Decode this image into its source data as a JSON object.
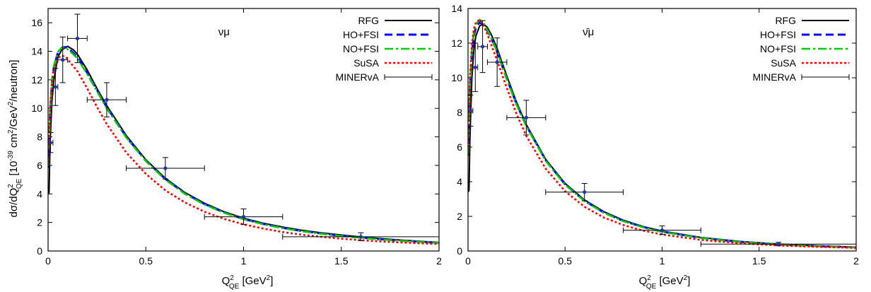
{
  "ylabel": {
    "main": "dσ/dQ",
    "sup1": "2",
    "sub1": "QE",
    "rest1": " [10",
    "sup2": "-39",
    "rest2": " cm",
    "sup3": "2",
    "rest3": "/GeV",
    "sup4": "2",
    "rest4": "/neutron]"
  },
  "xlabel": {
    "main": "Q",
    "sup1": "2",
    "sub1": "QE",
    "rest1": " [GeV",
    "sup2": "2",
    "rest2": "]"
  },
  "colors": {
    "RFG": "#000000",
    "HO+FSI": "#0000ff",
    "NO+FSI": "#00cc00",
    "SuSA": "#ff0000",
    "MINERvA": "#000000",
    "points": "#2233aa"
  },
  "chart_data": [
    {
      "type": "line",
      "annotation": "νμ",
      "xlim": [
        0,
        2
      ],
      "ylim": [
        0,
        17
      ],
      "x_ticks": [
        0,
        0.5,
        1,
        1.5,
        2
      ],
      "x_tick_labels": [
        "0",
        "0.5",
        "1",
        "1.5",
        "2"
      ],
      "y_ticks": [
        0,
        2,
        4,
        6,
        8,
        10,
        12,
        14,
        16
      ],
      "y_tick_labels": [
        "0",
        "2",
        "4",
        "6",
        "8",
        "10",
        "12",
        "14",
        "16"
      ],
      "legend_position": "top-right",
      "legend": [
        "RFG",
        "HO+FSI",
        "NO+FSI",
        "SuSA",
        "MINERvA"
      ],
      "series": [
        {
          "name": "RFG",
          "style": "solid",
          "x": [
            0,
            0.005,
            0.01,
            0.02,
            0.03,
            0.05,
            0.07,
            0.1,
            0.13,
            0.15,
            0.2,
            0.25,
            0.3,
            0.4,
            0.5,
            0.6,
            0.7,
            0.8,
            0.9,
            1.0,
            1.1,
            1.2,
            1.3,
            1.4,
            1.5,
            1.6,
            1.7,
            1.8,
            1.9,
            2.0
          ],
          "y": [
            4.0,
            4.1,
            7.5,
            10.5,
            12.0,
            13.6,
            14.1,
            14.35,
            14.1,
            13.8,
            12.7,
            11.4,
            10.2,
            8.1,
            6.4,
            5.1,
            4.1,
            3.35,
            2.75,
            2.3,
            1.95,
            1.68,
            1.45,
            1.27,
            1.12,
            0.98,
            0.87,
            0.77,
            0.68,
            0.6
          ]
        },
        {
          "name": "HO+FSI",
          "style": "dashed",
          "x": [
            0,
            0.005,
            0.01,
            0.02,
            0.03,
            0.05,
            0.07,
            0.09,
            0.12,
            0.15,
            0.2,
            0.25,
            0.3,
            0.4,
            0.5,
            0.6,
            0.7,
            0.8,
            0.9,
            1.0,
            1.1,
            1.2,
            1.3,
            1.4,
            1.5,
            1.6,
            1.7,
            1.8,
            1.9,
            2.0
          ],
          "y": [
            5.8,
            7.5,
            9.5,
            11.8,
            12.9,
            13.9,
            14.25,
            14.3,
            14.0,
            13.6,
            12.5,
            11.3,
            10.1,
            8.0,
            6.35,
            5.05,
            4.05,
            3.3,
            2.7,
            2.25,
            1.9,
            1.62,
            1.4,
            1.22,
            1.07,
            0.94,
            0.83,
            0.73,
            0.65,
            0.57
          ]
        },
        {
          "name": "NO+FSI",
          "style": "dashdot",
          "x": [
            0,
            0.005,
            0.01,
            0.02,
            0.03,
            0.05,
            0.07,
            0.09,
            0.12,
            0.15,
            0.2,
            0.25,
            0.3,
            0.4,
            0.5,
            0.6,
            0.7,
            0.8,
            0.9,
            1.0,
            1.1,
            1.2,
            1.3,
            1.4,
            1.5,
            1.6,
            1.7,
            1.8,
            1.9,
            2.0
          ],
          "y": [
            6.0,
            7.8,
            9.8,
            12.0,
            13.0,
            13.95,
            14.25,
            14.25,
            13.9,
            13.5,
            12.4,
            11.2,
            10.0,
            7.95,
            6.3,
            5.0,
            4.0,
            3.25,
            2.68,
            2.22,
            1.87,
            1.6,
            1.38,
            1.2,
            1.05,
            0.92,
            0.81,
            0.72,
            0.64,
            0.56
          ]
        },
        {
          "name": "SuSA",
          "style": "dotted",
          "x": [
            0,
            0.005,
            0.01,
            0.02,
            0.03,
            0.05,
            0.07,
            0.09,
            0.12,
            0.15,
            0.2,
            0.25,
            0.3,
            0.4,
            0.5,
            0.6,
            0.7,
            0.8,
            0.9,
            1.0,
            1.1,
            1.2,
            1.3,
            1.4,
            1.5,
            1.6,
            1.7,
            1.8,
            1.9,
            2.0
          ],
          "y": [
            6.2,
            8.0,
            10.0,
            11.9,
            12.8,
            13.5,
            13.7,
            13.6,
            13.1,
            12.6,
            11.4,
            10.1,
            8.9,
            6.9,
            5.4,
            4.25,
            3.4,
            2.75,
            2.25,
            1.87,
            1.57,
            1.33,
            1.14,
            0.99,
            0.86,
            0.76,
            0.67,
            0.6,
            0.54,
            0.49
          ]
        }
      ],
      "data_series": {
        "name": "MINERvA",
        "points": [
          {
            "x": 0.0125,
            "y": 7.6,
            "xerr": 0.0125,
            "yerr": 0.7
          },
          {
            "x": 0.0375,
            "y": 11.5,
            "xerr": 0.0125,
            "yerr": 1.3
          },
          {
            "x": 0.075,
            "y": 13.4,
            "xerr": 0.025,
            "yerr": 1.6
          },
          {
            "x": 0.15,
            "y": 14.9,
            "xerr": 0.05,
            "yerr": 1.7
          },
          {
            "x": 0.3,
            "y": 10.6,
            "xerr": 0.1,
            "yerr": 1.2
          },
          {
            "x": 0.6,
            "y": 5.8,
            "xerr": 0.2,
            "yerr": 0.75
          },
          {
            "x": 1.0,
            "y": 2.4,
            "xerr": 0.2,
            "yerr": 0.55
          },
          {
            "x": 1.6,
            "y": 1.0,
            "xerr": 0.4,
            "yerr": 0.28
          }
        ]
      }
    },
    {
      "type": "line",
      "annotation": "ν̄μ",
      "xlim": [
        0,
        2
      ],
      "ylim": [
        0,
        14
      ],
      "x_ticks": [
        0,
        0.5,
        1,
        1.5,
        2
      ],
      "x_tick_labels": [
        "0",
        "0.5",
        "1",
        "1.5",
        "2"
      ],
      "y_ticks": [
        0,
        2,
        4,
        6,
        8,
        10,
        12,
        14
      ],
      "y_tick_labels": [
        "0",
        "2",
        "4",
        "6",
        "8",
        "10",
        "12",
        "14"
      ],
      "legend_position": "top-right",
      "legend": [
        "RFG",
        "HO+FSI",
        "NO+FSI",
        "SuSA",
        "MINERvA"
      ],
      "series": [
        {
          "name": "RFG",
          "style": "solid",
          "x": [
            0,
            0.005,
            0.01,
            0.02,
            0.03,
            0.04,
            0.06,
            0.08,
            0.1,
            0.12,
            0.15,
            0.2,
            0.25,
            0.3,
            0.4,
            0.5,
            0.6,
            0.7,
            0.8,
            0.9,
            1.0,
            1.2,
            1.4,
            1.6,
            1.8,
            2.0
          ],
          "y": [
            3.4,
            3.5,
            6.5,
            10.0,
            11.6,
            12.4,
            13.0,
            13.1,
            12.9,
            12.5,
            11.7,
            10.1,
            8.6,
            7.3,
            5.3,
            3.9,
            2.95,
            2.27,
            1.78,
            1.42,
            1.15,
            0.78,
            0.55,
            0.4,
            0.3,
            0.22
          ]
        },
        {
          "name": "HO+FSI",
          "style": "dashed",
          "x": [
            0,
            0.005,
            0.01,
            0.02,
            0.03,
            0.04,
            0.06,
            0.08,
            0.1,
            0.12,
            0.15,
            0.2,
            0.25,
            0.3,
            0.4,
            0.5,
            0.6,
            0.7,
            0.8,
            0.9,
            1.0,
            1.2,
            1.4,
            1.6,
            1.8,
            2.0
          ],
          "y": [
            5.5,
            7.5,
            9.4,
            11.4,
            12.4,
            12.9,
            13.2,
            13.05,
            12.7,
            12.3,
            11.5,
            9.95,
            8.5,
            7.25,
            5.25,
            3.85,
            2.9,
            2.22,
            1.74,
            1.39,
            1.12,
            0.76,
            0.53,
            0.38,
            0.28,
            0.21
          ]
        },
        {
          "name": "NO+FSI",
          "style": "dashdot",
          "x": [
            0,
            0.005,
            0.01,
            0.02,
            0.03,
            0.04,
            0.06,
            0.08,
            0.1,
            0.12,
            0.15,
            0.2,
            0.25,
            0.3,
            0.4,
            0.5,
            0.6,
            0.7,
            0.8,
            0.9,
            1.0,
            1.2,
            1.4,
            1.6,
            1.8,
            2.0
          ],
          "y": [
            5.6,
            7.6,
            9.6,
            11.6,
            12.6,
            13.1,
            13.35,
            13.15,
            12.75,
            12.3,
            11.5,
            9.9,
            8.45,
            7.2,
            5.2,
            3.82,
            2.88,
            2.2,
            1.72,
            1.37,
            1.1,
            0.75,
            0.52,
            0.37,
            0.27,
            0.2
          ]
        },
        {
          "name": "SuSA",
          "style": "dotted",
          "x": [
            0,
            0.005,
            0.01,
            0.02,
            0.03,
            0.04,
            0.06,
            0.08,
            0.1,
            0.12,
            0.15,
            0.2,
            0.25,
            0.3,
            0.4,
            0.5,
            0.6,
            0.7,
            0.8,
            0.9,
            1.0,
            1.2,
            1.4,
            1.6,
            1.8,
            2.0
          ],
          "y": [
            6.0,
            8.0,
            10.0,
            11.9,
            12.8,
            13.2,
            13.35,
            13.0,
            12.5,
            11.9,
            11.0,
            9.4,
            7.9,
            6.65,
            4.75,
            3.45,
            2.55,
            1.93,
            1.5,
            1.18,
            0.95,
            0.64,
            0.45,
            0.32,
            0.24,
            0.18
          ]
        }
      ],
      "data_series": {
        "name": "MINERvA",
        "points": [
          {
            "x": 0.0125,
            "y": 8.1,
            "xerr": 0.0125,
            "yerr": 0.9
          },
          {
            "x": 0.0375,
            "y": 10.6,
            "xerr": 0.0125,
            "yerr": 1.4
          },
          {
            "x": 0.075,
            "y": 11.8,
            "xerr": 0.025,
            "yerr": 1.5
          },
          {
            "x": 0.15,
            "y": 10.9,
            "xerr": 0.05,
            "yerr": 1.4
          },
          {
            "x": 0.3,
            "y": 7.7,
            "xerr": 0.1,
            "yerr": 1.0
          },
          {
            "x": 0.6,
            "y": 3.4,
            "xerr": 0.2,
            "yerr": 0.5
          },
          {
            "x": 1.0,
            "y": 1.2,
            "xerr": 0.2,
            "yerr": 0.25
          },
          {
            "x": 1.6,
            "y": 0.4,
            "xerr": 0.4,
            "yerr": 0.1
          }
        ]
      }
    }
  ]
}
